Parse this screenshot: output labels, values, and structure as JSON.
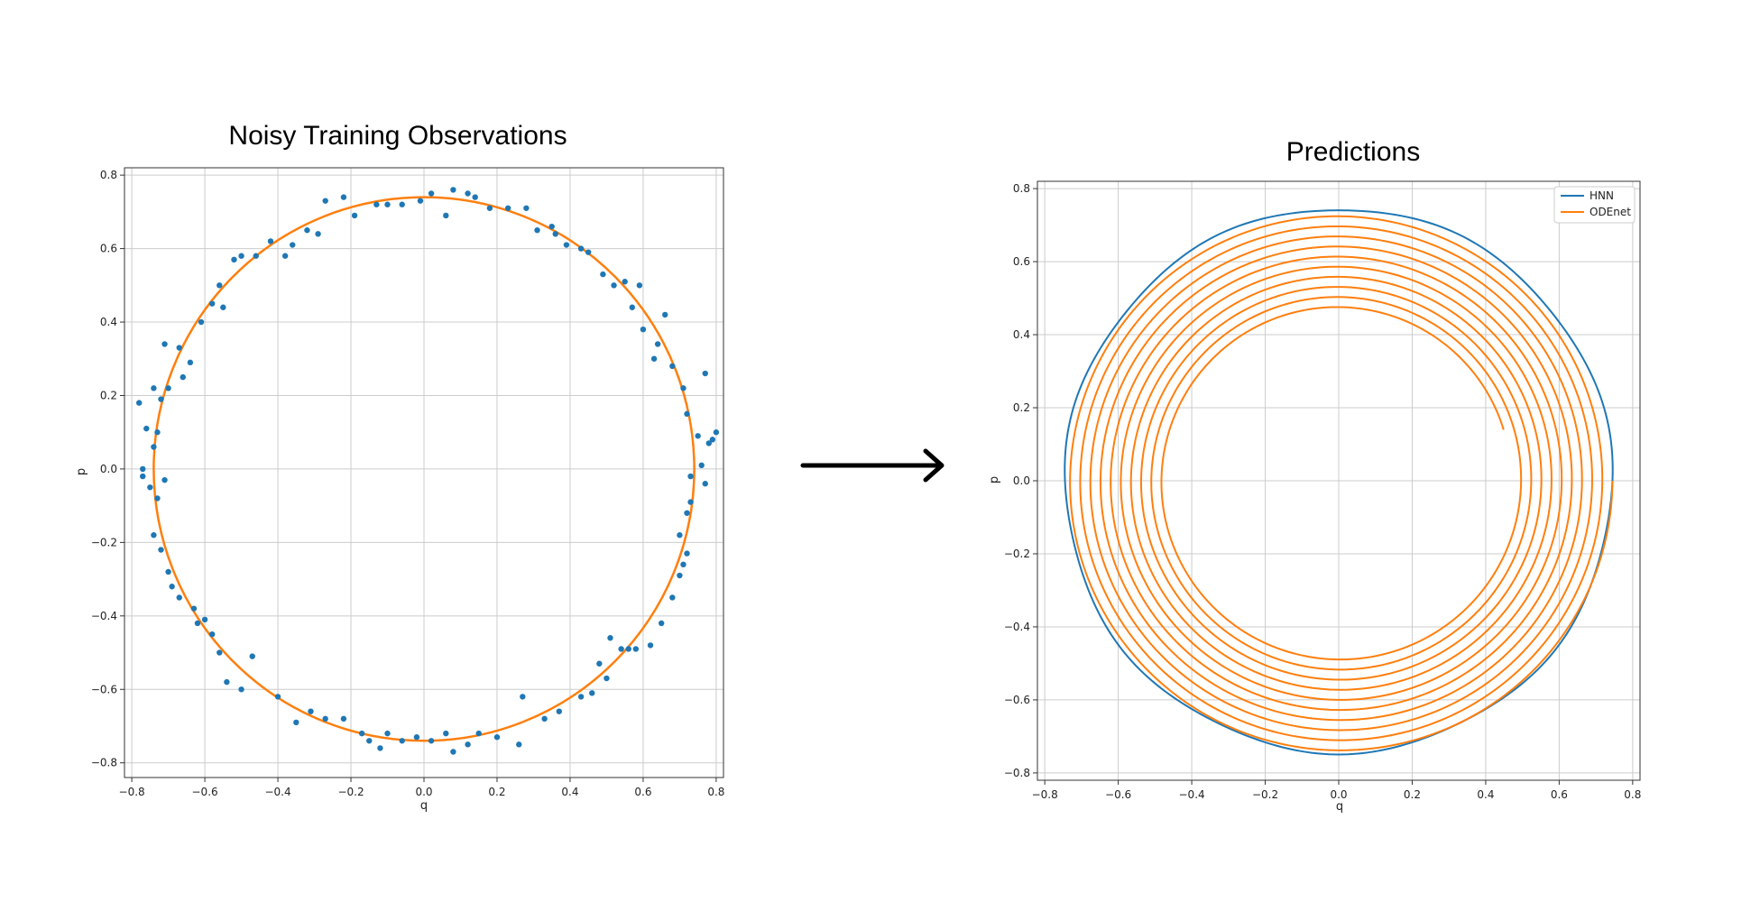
{
  "colors": {
    "blue": "#1f77b4",
    "orange": "#ff7f0e",
    "grid": "#cccccc",
    "arrow": "#000000"
  },
  "arrow_icon": "right-arrow-icon",
  "chart_data": [
    {
      "type": "scatter",
      "title": "Noisy Training Observations",
      "xlabel": "q",
      "ylabel": "p",
      "xlim": [
        -0.82,
        0.82
      ],
      "ylim": [
        -0.84,
        0.82
      ],
      "xticks": [
        -0.8,
        -0.6,
        -0.4,
        -0.2,
        0.0,
        0.2,
        0.4,
        0.6,
        0.8
      ],
      "yticks": [
        -0.8,
        -0.6,
        -0.4,
        -0.2,
        0.0,
        0.2,
        0.4,
        0.6,
        0.8
      ],
      "xtick_labels": [
        "−0.8",
        "−0.6",
        "−0.4",
        "−0.2",
        "0.0",
        "0.2",
        "0.4",
        "0.6",
        "0.8"
      ],
      "ytick_labels": [
        "−0.8",
        "−0.6",
        "−0.4",
        "−0.2",
        "0.0",
        "0.2",
        "0.4",
        "0.6",
        "0.8"
      ],
      "grid": true,
      "curve": {
        "shape": "circle",
        "center": [
          0,
          0
        ],
        "radius": 0.74,
        "color": "orange"
      },
      "points": [
        [
          0.02,
          0.75
        ],
        [
          0.08,
          0.76
        ],
        [
          0.12,
          0.75
        ],
        [
          0.06,
          0.69
        ],
        [
          0.18,
          0.71
        ],
        [
          0.23,
          0.71
        ],
        [
          0.28,
          0.71
        ],
        [
          0.31,
          0.65
        ],
        [
          0.36,
          0.64
        ],
        [
          0.39,
          0.61
        ],
        [
          0.43,
          0.6
        ],
        [
          0.45,
          0.59
        ],
        [
          0.49,
          0.53
        ],
        [
          0.52,
          0.5
        ],
        [
          0.55,
          0.51
        ],
        [
          0.59,
          0.5
        ],
        [
          0.57,
          0.44
        ],
        [
          0.66,
          0.42
        ],
        [
          0.64,
          0.34
        ],
        [
          0.68,
          0.28
        ],
        [
          0.71,
          0.22
        ],
        [
          0.77,
          0.26
        ],
        [
          0.72,
          0.15
        ],
        [
          0.75,
          0.09
        ],
        [
          0.78,
          0.07
        ],
        [
          0.8,
          0.1
        ],
        [
          0.76,
          0.01
        ],
        [
          0.73,
          -0.02
        ],
        [
          0.77,
          -0.04
        ],
        [
          0.72,
          -0.12
        ],
        [
          0.7,
          -0.18
        ],
        [
          0.72,
          -0.23
        ],
        [
          0.71,
          -0.26
        ],
        [
          0.7,
          -0.29
        ],
        [
          0.68,
          -0.35
        ],
        [
          0.65,
          -0.42
        ],
        [
          0.62,
          -0.48
        ],
        [
          0.58,
          -0.49
        ],
        [
          0.56,
          -0.49
        ],
        [
          0.51,
          -0.46
        ],
        [
          0.48,
          -0.53
        ],
        [
          0.5,
          -0.57
        ],
        [
          0.46,
          -0.61
        ],
        [
          0.43,
          -0.62
        ],
        [
          0.37,
          -0.66
        ],
        [
          0.33,
          -0.68
        ],
        [
          0.27,
          -0.62
        ],
        [
          0.26,
          -0.75
        ],
        [
          0.2,
          -0.73
        ],
        [
          0.15,
          -0.72
        ],
        [
          0.12,
          -0.75
        ],
        [
          0.08,
          -0.77
        ],
        [
          0.06,
          -0.72
        ],
        [
          0.02,
          -0.74
        ],
        [
          -0.02,
          -0.73
        ],
        [
          -0.06,
          -0.74
        ],
        [
          -0.1,
          -0.72
        ],
        [
          -0.12,
          -0.76
        ],
        [
          -0.15,
          -0.74
        ],
        [
          -0.17,
          -0.72
        ],
        [
          -0.22,
          -0.68
        ],
        [
          -0.27,
          -0.68
        ],
        [
          -0.31,
          -0.66
        ],
        [
          -0.35,
          -0.69
        ],
        [
          -0.4,
          -0.62
        ],
        [
          -0.47,
          -0.51
        ],
        [
          -0.5,
          -0.6
        ],
        [
          -0.54,
          -0.58
        ],
        [
          -0.56,
          -0.5
        ],
        [
          -0.58,
          -0.45
        ],
        [
          -0.6,
          -0.41
        ],
        [
          -0.63,
          -0.38
        ],
        [
          -0.67,
          -0.35
        ],
        [
          -0.69,
          -0.32
        ],
        [
          -0.7,
          -0.28
        ],
        [
          -0.72,
          -0.22
        ],
        [
          -0.74,
          -0.18
        ],
        [
          -0.73,
          -0.08
        ],
        [
          -0.71,
          -0.03
        ],
        [
          -0.75,
          -0.05
        ],
        [
          -0.77,
          -0.02
        ],
        [
          -0.77,
          0.0
        ],
        [
          -0.74,
          0.06
        ],
        [
          -0.73,
          0.1
        ],
        [
          -0.76,
          0.11
        ],
        [
          -0.78,
          0.18
        ],
        [
          -0.72,
          0.19
        ],
        [
          -0.74,
          0.22
        ],
        [
          -0.7,
          0.22
        ],
        [
          -0.66,
          0.25
        ],
        [
          -0.64,
          0.29
        ],
        [
          -0.67,
          0.33
        ],
        [
          -0.71,
          0.34
        ],
        [
          -0.61,
          0.4
        ],
        [
          -0.58,
          0.45
        ],
        [
          -0.55,
          0.44
        ],
        [
          -0.56,
          0.5
        ],
        [
          -0.52,
          0.57
        ],
        [
          -0.5,
          0.58
        ],
        [
          -0.46,
          0.58
        ],
        [
          -0.42,
          0.62
        ],
        [
          -0.38,
          0.58
        ],
        [
          -0.36,
          0.61
        ],
        [
          -0.32,
          0.65
        ],
        [
          -0.29,
          0.64
        ],
        [
          -0.27,
          0.73
        ],
        [
          -0.22,
          0.74
        ],
        [
          -0.19,
          0.69
        ],
        [
          -0.13,
          0.72
        ],
        [
          -0.1,
          0.72
        ],
        [
          -0.06,
          0.72
        ],
        [
          -0.01,
          0.73
        ],
        [
          0.14,
          0.74
        ],
        [
          0.35,
          0.66
        ],
        [
          0.6,
          0.38
        ],
        [
          0.63,
          0.3
        ],
        [
          0.79,
          0.08
        ],
        [
          0.73,
          -0.09
        ],
        [
          0.54,
          -0.49
        ],
        [
          -0.62,
          -0.42
        ]
      ]
    },
    {
      "type": "line",
      "title": "Predictions",
      "xlabel": "q",
      "ylabel": "p",
      "xlim": [
        -0.82,
        0.82
      ],
      "ylim": [
        -0.82,
        0.82
      ],
      "xticks": [
        -0.8,
        -0.6,
        -0.4,
        -0.2,
        0.0,
        0.2,
        0.4,
        0.6,
        0.8
      ],
      "yticks": [
        -0.8,
        -0.6,
        -0.4,
        -0.2,
        0.0,
        0.2,
        0.4,
        0.6,
        0.8
      ],
      "xtick_labels": [
        "−0.8",
        "−0.6",
        "−0.4",
        "−0.2",
        "0.0",
        "0.2",
        "0.4",
        "0.6",
        "0.8"
      ],
      "ytick_labels": [
        "−0.8",
        "−0.6",
        "−0.4",
        "−0.2",
        "0.0",
        "0.2",
        "0.4",
        "0.6",
        "0.8"
      ],
      "grid": true,
      "legend": {
        "placement": "top-right",
        "entries": [
          "HNN",
          "ODEnet"
        ]
      },
      "series": [
        {
          "name": "HNN",
          "color": "blue",
          "shape": "circle",
          "radius": 0.745
        },
        {
          "name": "ODEnet",
          "color": "orange",
          "shape": "inward-spiral",
          "start_radius": 0.745,
          "end_radius": 0.47,
          "turns": 9.2,
          "end_point": [
            0.45,
            0.14
          ]
        }
      ]
    }
  ]
}
